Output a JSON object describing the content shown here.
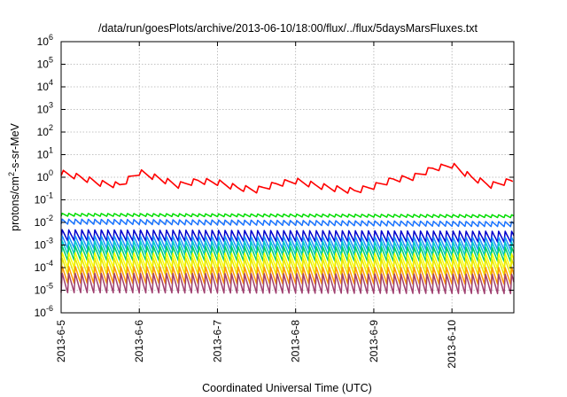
{
  "chart_data": {
    "type": "line",
    "title": "/data/run/goesPlots/archive/2013-06-10/18:00/flux/../flux/5daysMarsFluxes.txt",
    "xlabel": "Coordinated Universal Time (UTC)",
    "ylabel": "protons/cm²-s-sr-MeV",
    "ylabel_parts": {
      "base": "protons/cm",
      "sup": "2",
      "rest": "-s-sr-MeV"
    },
    "y_scale": "log",
    "ylim": [
      1e-06,
      1000000.0
    ],
    "y_ticks": [
      {
        "value": 1e-06,
        "label": "10",
        "exp": "-6"
      },
      {
        "value": 1e-05,
        "label": "10",
        "exp": "-5"
      },
      {
        "value": 0.0001,
        "label": "10",
        "exp": "-4"
      },
      {
        "value": 0.001,
        "label": "10",
        "exp": "-3"
      },
      {
        "value": 0.01,
        "label": "10",
        "exp": "-2"
      },
      {
        "value": 0.1,
        "label": "10",
        "exp": "-1"
      },
      {
        "value": 1,
        "label": "10",
        "exp": "0"
      },
      {
        "value": 10.0,
        "label": "10",
        "exp": "1"
      },
      {
        "value": 100.0,
        "label": "10",
        "exp": "2"
      },
      {
        "value": 1000.0,
        "label": "10",
        "exp": "3"
      },
      {
        "value": 10000.0,
        "label": "10",
        "exp": "4"
      },
      {
        "value": 100000.0,
        "label": "10",
        "exp": "5"
      },
      {
        "value": 1000000.0,
        "label": "10",
        "exp": "6"
      }
    ],
    "xlim": [
      "2013-06-05",
      "2013-06-10T19:00"
    ],
    "x_ticks": [
      {
        "value": "2013-06-05",
        "label": "2013-6-5"
      },
      {
        "value": "2013-06-06",
        "label": "2013-6-6"
      },
      {
        "value": "2013-06-07",
        "label": "2013-6-7"
      },
      {
        "value": "2013-06-08",
        "label": "2013-6-8"
      },
      {
        "value": "2013-06-09",
        "label": "2013-6-9"
      },
      {
        "value": "2013-06-10",
        "label": "2013-6-10"
      }
    ],
    "grid": true,
    "series": [
      {
        "color": "#ff0000",
        "x": [
          "2013-06-05",
          "2013-06-05T06:00",
          "2013-06-05T12:00",
          "2013-06-05T18:00",
          "2013-06-06",
          "2013-06-06T06:00",
          "2013-06-06T12:00",
          "2013-06-06T18:00",
          "2013-06-07",
          "2013-06-07T06:00",
          "2013-06-07T12:00",
          "2013-06-07T18:00",
          "2013-06-08",
          "2013-06-08T06:00",
          "2013-06-08T12:00",
          "2013-06-08T18:00",
          "2013-06-09",
          "2013-06-09T06:00",
          "2013-06-09T12:00",
          "2013-06-09T18:00",
          "2013-06-10",
          "2013-06-10T06:00",
          "2013-06-10T12:00",
          "2013-06-10T18:00"
        ],
        "values": [
          1.6,
          1.0,
          0.55,
          0.45,
          1.7,
          0.9,
          0.45,
          0.7,
          0.6,
          0.35,
          0.28,
          0.5,
          0.7,
          0.45,
          0.32,
          0.25,
          0.4,
          0.8,
          1.0,
          2.4,
          3.5,
          1.0,
          0.45,
          0.7
        ],
        "spikes_per_day": 6,
        "spike_ratio": 1.9
      },
      {
        "color": "#00dd00",
        "x": [
          "2013-06-05",
          "2013-06-10T19:00"
        ],
        "values": [
          0.022,
          0.019
        ],
        "spikes_per_day": 12,
        "spike_ratio": 1.35
      },
      {
        "color": "#1a73ff",
        "x": [
          "2013-06-05",
          "2013-06-10T19:00"
        ],
        "values": [
          0.011,
          0.0085
        ],
        "spikes_per_day": 12,
        "spike_ratio": 1.7
      },
      {
        "color": "#0000cc",
        "x": [
          "2013-06-05",
          "2013-06-10T19:00"
        ],
        "values": [
          0.0028,
          0.0024
        ],
        "spikes_per_day": 12,
        "spike_ratio": 3.2
      },
      {
        "color": "#1e90ff",
        "x": [
          "2013-06-05",
          "2013-06-10T19:00"
        ],
        "values": [
          0.0014,
          0.0012
        ],
        "spikes_per_day": 12,
        "spike_ratio": 3.8
      },
      {
        "color": "#00cccc",
        "x": [
          "2013-06-05",
          "2013-06-10T19:00"
        ],
        "values": [
          0.0008,
          0.0007
        ],
        "spikes_per_day": 12,
        "spike_ratio": 4.2
      },
      {
        "color": "#00cc66",
        "x": [
          "2013-06-05",
          "2013-06-10T19:00"
        ],
        "values": [
          0.00045,
          0.0004
        ],
        "spikes_per_day": 12,
        "spike_ratio": 4.5
      },
      {
        "color": "#ffff00",
        "x": [
          "2013-06-05",
          "2013-06-10T19:00"
        ],
        "values": [
          0.00022,
          0.0002
        ],
        "spikes_per_day": 12,
        "spike_ratio": 5.0
      },
      {
        "color": "#e8e800",
        "x": [
          "2013-06-05",
          "2013-06-10T19:00"
        ],
        "values": [
          0.00012,
          0.00011
        ],
        "spikes_per_day": 12,
        "spike_ratio": 5.5
      },
      {
        "color": "#ff9900",
        "x": [
          "2013-06-05",
          "2013-06-10T19:00"
        ],
        "values": [
          5e-05,
          4.5e-05
        ],
        "spikes_per_day": 12,
        "spike_ratio": 6.0
      },
      {
        "color": "#a04070",
        "x": [
          "2013-06-05",
          "2013-06-10T19:00"
        ],
        "values": [
          2.2e-05,
          2e-05
        ],
        "spikes_per_day": 12,
        "spike_ratio": 8.0
      }
    ],
    "colors": {
      "background": "#ffffff",
      "axis": "#000000",
      "grid": "#b0b0b0"
    }
  }
}
